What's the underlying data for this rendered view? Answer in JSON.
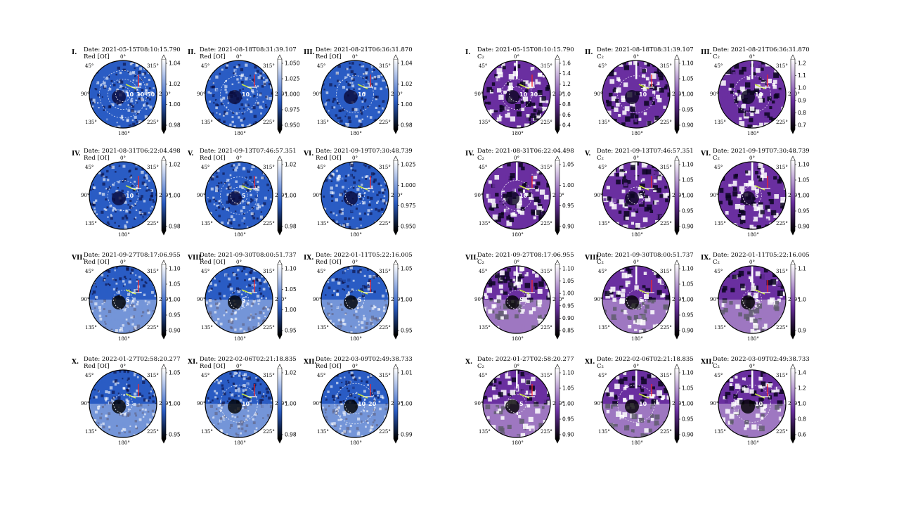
{
  "colors": {
    "oi_low": "#0a0a3a",
    "oi_mid": "#2a5cc4",
    "oi_high": "#ffffff",
    "c2_low": "#0b0520",
    "c2_mid": "#6a2fa0",
    "c2_high": "#ffffff",
    "sun_vec": "#c8e63c",
    "vel_vec": "#ff2020",
    "up_vec": "#ffffff"
  },
  "angles": [
    "0°",
    "45°",
    "315°",
    "90°",
    "270°",
    "135°",
    "225°",
    "180°"
  ],
  "left_panels": [
    {
      "numeral": "I.",
      "date": "Date: 2021-05-15T08:10:15.790",
      "band": "Red [OI]",
      "labels": [
        "10",
        "30",
        "50"
      ],
      "rings": [
        0.22,
        0.45,
        0.7
      ],
      "ticks": [
        "1.04",
        "1.02",
        "1.00",
        "0.98"
      ],
      "top": [
        1.04,
        1.02,
        1.0,
        0.98
      ]
    },
    {
      "numeral": "II.",
      "date": "Date: 2021-08-18T08:31:39.107",
      "band": "Red [OI]",
      "labels": [
        "10"
      ],
      "rings": [
        0.55
      ],
      "ticks": [
        "1.050",
        "1.025",
        "1.000",
        "0.975",
        "0.950"
      ]
    },
    {
      "numeral": "III.",
      "date": "Date: 2021-08-21T06:36:31.870",
      "band": "Red [OI]",
      "labels": [
        "10"
      ],
      "rings": [
        0.55
      ],
      "ticks": [
        "1.04",
        "1.02",
        "1.00",
        "0.98"
      ]
    },
    {
      "numeral": "IV.",
      "date": "Date: 2021-08-31T06:22:04.498",
      "band": "Red [OI]",
      "labels": [
        "10"
      ],
      "rings": [
        0.45
      ],
      "ticks": [
        "1.02",
        "1.00",
        "0.98"
      ]
    },
    {
      "numeral": "V.",
      "date": "Date: 2021-09-13T07:46:57.351",
      "band": "Red [OI]",
      "labels": [
        "5"
      ],
      "rings": [
        0.25,
        0.55
      ],
      "ticks": [
        "1.02",
        "1.00",
        "0.98"
      ]
    },
    {
      "numeral": "VI.",
      "date": "Date: 2021-09-19T07:30:48.739",
      "band": "Red [OI]",
      "labels": [
        "5"
      ],
      "rings": [
        0.28
      ],
      "ticks": [
        "1.025",
        "1.000",
        "0.975",
        "0.950"
      ]
    },
    {
      "numeral": "VII.",
      "date": "Date: 2021-09-27T08:17:06.955",
      "band": "Red [OI]",
      "labels": [
        "5"
      ],
      "rings": [
        0.28
      ],
      "ticks": [
        "1.10",
        "1.05",
        "1.00",
        "0.95",
        "0.90"
      ]
    },
    {
      "numeral": "VIII.",
      "date": "Date: 2021-09-30T08:00:51.737",
      "band": "Red [OI]",
      "labels": [
        "5"
      ],
      "rings": [
        0.28
      ],
      "ticks": [
        "1.10",
        "1.05",
        "1.00",
        "0.95"
      ]
    },
    {
      "numeral": "IX.",
      "date": "Date: 2022-01-11T05:22:16.005",
      "band": "Red [OI]",
      "labels": [
        "5"
      ],
      "rings": [
        0.28
      ],
      "ticks": [
        "1.05",
        "1.00",
        "0.95"
      ]
    },
    {
      "numeral": "X.",
      "date": "Date: 2022-01-27T02:58:20.277",
      "band": "Red [OI]",
      "labels": [
        "5"
      ],
      "rings": [
        0.28
      ],
      "ticks": [
        "1.05",
        "1.00",
        "0.95"
      ]
    },
    {
      "numeral": "XI.",
      "date": "Date: 2022-02-06T02:21:18.835",
      "band": "Red [OI]",
      "labels": [
        "10"
      ],
      "rings": [
        0.55
      ],
      "ticks": [
        "1.02",
        "1.00",
        "0.98"
      ]
    },
    {
      "numeral": "XII.",
      "date": "Date: 2022-03-09T02:49:38.733",
      "band": "Red [OI]",
      "labels": [
        "10",
        "20"
      ],
      "rings": [
        0.3,
        0.6
      ],
      "ticks": [
        "1.01",
        "1.00",
        "0.99"
      ]
    }
  ],
  "right_panels": [
    {
      "numeral": "I.",
      "date": "Date: 2021-05-15T08:10:15.790",
      "band": "C₂",
      "labels": [
        "10",
        "30"
      ],
      "rings": [
        0.22,
        0.45
      ],
      "ticks": [
        "1.6",
        "1.4",
        "1.2",
        "1.0",
        "0.8",
        "0.6",
        "0.4"
      ]
    },
    {
      "numeral": "II.",
      "date": "Date: 2021-08-18T08:31:39.107",
      "band": "C₂",
      "labels": [
        "10"
      ],
      "rings": [
        0.55
      ],
      "ticks": [
        "1.10",
        "1.05",
        "1.00",
        "0.95",
        "0.90"
      ]
    },
    {
      "numeral": "III.",
      "date": "Date: 2021-08-21T06:36:31.870",
      "band": "C₂",
      "labels": [
        "10"
      ],
      "rings": [
        0.55
      ],
      "ticks": [
        "1.2",
        "1.1",
        "1.0",
        "0.9",
        "0.8",
        "0.7"
      ]
    },
    {
      "numeral": "IV.",
      "date": "Date: 2021-08-31T06:22:04.498",
      "band": "C₂",
      "labels": [
        "10"
      ],
      "rings": [
        0.45
      ],
      "ticks": [
        "1.05",
        "1.00",
        "0.95",
        "0.90"
      ]
    },
    {
      "numeral": "V.",
      "date": "Date: 2021-09-13T07:46:57.351",
      "band": "C₂",
      "labels": [
        "5"
      ],
      "rings": [
        0.25
      ],
      "ticks": [
        "1.10",
        "1.05",
        "1.00",
        "0.95",
        "0.90"
      ]
    },
    {
      "numeral": "VI.",
      "date": "Date: 2021-09-19T07:30:48.739",
      "band": "C₂",
      "labels": [
        "5"
      ],
      "rings": [
        0.28
      ],
      "ticks": [
        "1.10",
        "1.05",
        "1.00",
        "0.95",
        "0.90"
      ]
    },
    {
      "numeral": "VII.",
      "date": "Date: 2021-09-27T08:17:06.955",
      "band": "C₂",
      "labels": [
        "5"
      ],
      "rings": [
        0.28
      ],
      "ticks": [
        "1.10",
        "1.05",
        "1.00",
        "0.95",
        "0.90",
        "0.85"
      ]
    },
    {
      "numeral": "VIII.",
      "date": "Date: 2021-09-30T08:00:51.737",
      "band": "C₂",
      "labels": [
        "5"
      ],
      "rings": [
        0.28
      ],
      "ticks": [
        "1.10",
        "1.05",
        "1.00",
        "0.95",
        "0.90"
      ]
    },
    {
      "numeral": "IX.",
      "date": "Date: 2022-01-11T05:22:16.005",
      "band": "C₂",
      "labels": [
        "5"
      ],
      "rings": [
        0.28
      ],
      "ticks": [
        "1.1",
        "1.0",
        "0.9"
      ]
    },
    {
      "numeral": "X.",
      "date": "Date: 2022-01-27T02:58:20.277",
      "band": "C₂",
      "labels": [
        "5"
      ],
      "rings": [
        0.28
      ],
      "ticks": [
        "1.10",
        "1.05",
        "1.00",
        "0.95",
        "0.90"
      ]
    },
    {
      "numeral": "XI.",
      "date": "Date: 2022-02-06T02:21:18.835",
      "band": "C₂",
      "labels": [
        "10"
      ],
      "rings": [
        0.55
      ],
      "ticks": [
        "1.10",
        "1.05",
        "1.00",
        "0.95",
        "0.90"
      ]
    },
    {
      "numeral": "XII.",
      "date": "Date: 2022-03-09T02:49:38.733",
      "band": "C₂",
      "labels": [
        "10"
      ],
      "rings": [
        0.55
      ],
      "ticks": [
        "1.4",
        "1.2",
        "1.0",
        "0.8",
        "0.6"
      ]
    }
  ]
}
